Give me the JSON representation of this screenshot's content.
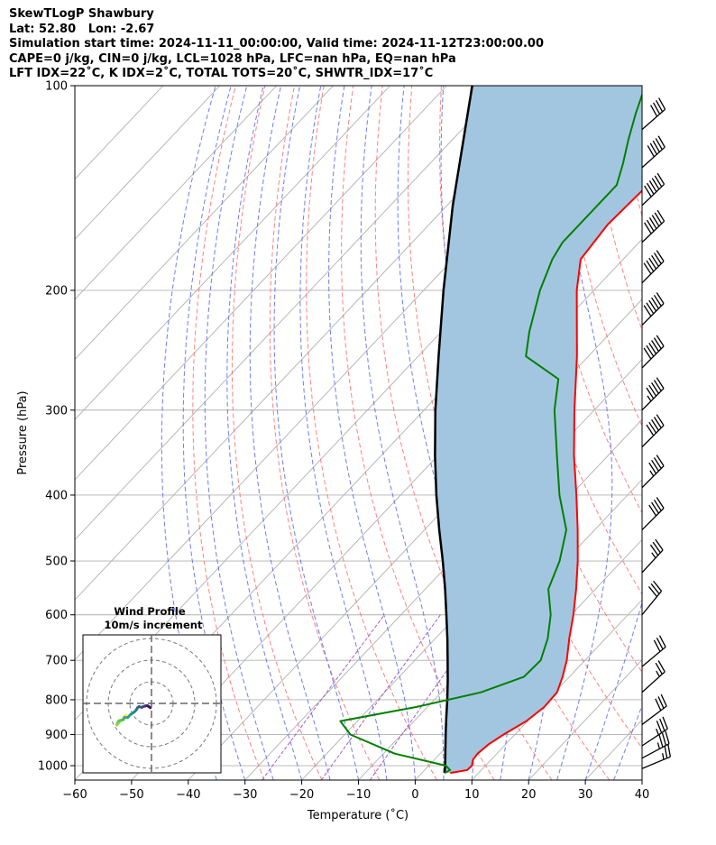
{
  "header": {
    "line1": "SkewTLogP Shawbury",
    "line2": "Lat: 52.80   Lon: -2.67",
    "line3": "Simulation start time: 2024-11-11_00:00:00, Valid time: 2024-11-12T23:00:00.00",
    "line4": "CAPE=0 j/kg, CIN=0 j/kg, LCL=1028 hPa, LFC=nan hPa, EQ=nan hPa",
    "line5": "LFT IDX=22˚C, K IDX=2˚C, TOTAL TOTS=20˚C, SHWTR_IDX=17˚C"
  },
  "chart_data": {
    "type": "line",
    "subtype": "skew-t log-p diagram",
    "xlabel": "Temperature (˚C)",
    "ylabel": "Pressure (hPa)",
    "x_ticks": [
      -60,
      -50,
      -40,
      -30,
      -20,
      -10,
      0,
      10,
      20,
      30,
      40
    ],
    "y_ticks": [
      100,
      200,
      300,
      400,
      500,
      600,
      700,
      800,
      900,
      1000
    ],
    "xlim": [
      -60,
      40
    ],
    "ylim": [
      1050,
      100
    ],
    "grid": true,
    "colors": {
      "temperature": "#ff0000",
      "dewpoint": "#008000",
      "parcel": "#000000",
      "shading": "#a3c6e0",
      "dry_adiabats": "#ff6b6b",
      "moist_adiabats": "#5566ee",
      "mixing_ratio": "#9a4fc0",
      "isotherms": "#b0b0b0"
    },
    "series": [
      {
        "name": "temperature",
        "pressure": [
          1025,
          1015,
          1000,
          980,
          960,
          930,
          900,
          860,
          820,
          780,
          740,
          700,
          650,
          600,
          550,
          500,
          450,
          400,
          350,
          300,
          250,
          200,
          180,
          160,
          140,
          130,
          120,
          110,
          100
        ],
        "temperature": [
          5.0,
          7.5,
          7.6,
          6.8,
          6.6,
          7.0,
          8.0,
          9.8,
          10.6,
          10.4,
          8.8,
          6.8,
          3.6,
          0.4,
          -3.4,
          -7.8,
          -13.0,
          -19.0,
          -26.0,
          -33.5,
          -42.0,
          -53.0,
          -57.5,
          -58.5,
          -58.0,
          -59.5,
          -63.0,
          -67.0,
          -72.0
        ]
      },
      {
        "name": "dewpoint",
        "pressure": [
          1025,
          1015,
          1000,
          960,
          900,
          860,
          820,
          780,
          740,
          700,
          650,
          600,
          550,
          500,
          450,
          400,
          350,
          300,
          270,
          250,
          230,
          200,
          180,
          170,
          150,
          140,
          130,
          120,
          110,
          100
        ],
        "temperature": [
          4.0,
          4.5,
          3.0,
          -8.0,
          -19.0,
          -23.0,
          -12.0,
          -3.0,
          2.0,
          2.2,
          -0.2,
          -3.6,
          -8.3,
          -11.0,
          -15.0,
          -22.0,
          -29.0,
          -37.0,
          -41.5,
          -51.0,
          -54.5,
          -59.5,
          -62.5,
          -63.5,
          -63.5,
          -63.5,
          -66.0,
          -69.0,
          -72.0,
          -75.0
        ]
      },
      {
        "name": "parcel",
        "pressure": [
          1025,
          1000,
          950,
          900,
          850,
          800,
          750,
          700,
          650,
          600,
          550,
          500,
          450,
          400,
          350,
          300,
          250,
          200,
          150,
          100
        ],
        "temperature": [
          4.0,
          2.9,
          0.4,
          -2.2,
          -4.9,
          -7.7,
          -10.8,
          -14.2,
          -17.9,
          -22.0,
          -26.5,
          -31.6,
          -37.4,
          -43.7,
          -50.5,
          -58.0,
          -66.4,
          -76.5,
          -89.0,
          -105.5
        ]
      }
    ],
    "wind_barbs": [
      {
        "pressure": 1010,
        "u": -12.0,
        "v": -5.0
      },
      {
        "pressure": 975,
        "u": -15.0,
        "v": -8.0
      },
      {
        "pressure": 935,
        "u": -15.0,
        "v": -10.0
      },
      {
        "pressure": 870,
        "u": -12.0,
        "v": -9.0
      },
      {
        "pressure": 780,
        "u": -10.0,
        "v": -9.0
      },
      {
        "pressure": 715,
        "u": -12.0,
        "v": -10.0
      },
      {
        "pressure": 600,
        "u": -9.0,
        "v": -11.0
      },
      {
        "pressure": 520,
        "u": -12.0,
        "v": -13.0
      },
      {
        "pressure": 450,
        "u": -14.0,
        "v": -14.0
      },
      {
        "pressure": 390,
        "u": -16.0,
        "v": -16.0
      },
      {
        "pressure": 340,
        "u": -18.0,
        "v": -18.0
      },
      {
        "pressure": 300,
        "u": -20.0,
        "v": -20.0
      },
      {
        "pressure": 260,
        "u": -22.0,
        "v": -22.0
      },
      {
        "pressure": 225,
        "u": -22.0,
        "v": -22.0
      },
      {
        "pressure": 195,
        "u": -22.0,
        "v": -22.0
      },
      {
        "pressure": 170,
        "u": -22.0,
        "v": -21.0
      },
      {
        "pressure": 150,
        "u": -22.0,
        "v": -21.0
      },
      {
        "pressure": 132,
        "u": -20.0,
        "v": -18.0
      },
      {
        "pressure": 116,
        "u": -16.0,
        "v": -14.0
      }
    ],
    "hodograph": {
      "title_line1": "Wind Profile",
      "title_line2": "10m/s increment",
      "ring_step": 10,
      "rings": 3,
      "u": [
        -12.0,
        -13.5,
        -15.0,
        -16.0,
        -15.8,
        -15.0,
        -13.0,
        -12.5,
        -11.0,
        -9.5,
        -8.0,
        -7.0,
        -6.5,
        -5.8,
        -4.5,
        -3.0,
        -2.0,
        -1.2,
        -0.5
      ],
      "v": [
        -5.5,
        -7.5,
        -9.0,
        -10.0,
        -9.0,
        -8.0,
        -7.5,
        -6.5,
        -6.5,
        -5.0,
        -4.0,
        -3.0,
        -2.0,
        -1.5,
        -1.8,
        -1.2,
        -1.0,
        -1.5,
        -2.0
      ]
    }
  }
}
